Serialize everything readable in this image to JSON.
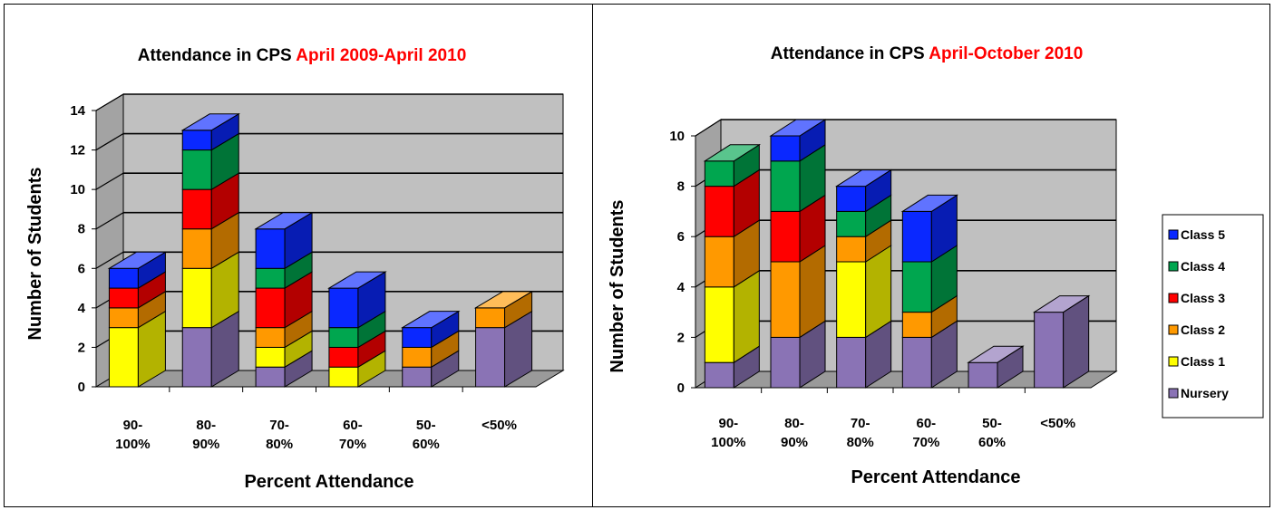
{
  "colors": {
    "Nursery": "#8a73b5",
    "Class 1": "#ffff00",
    "Class 2": "#ff9900",
    "Class 3": "#ff0000",
    "Class 4": "#00a64f",
    "Class 5": "#0a28ff",
    "wall": "#c0c0c0",
    "floor": "#9a9a9a"
  },
  "legend": {
    "items": [
      "Class 5",
      "Class 4",
      "Class 3",
      "Class 2",
      "Class 1",
      "Nursery"
    ]
  },
  "chart_data": [
    {
      "type": "bar",
      "stacked": true,
      "title_prefix": "Attendance in CPS ",
      "title_highlight": "April 2009-April 2010",
      "xlabel": "Percent Attendance",
      "ylabel": "Number of Students",
      "ylim": [
        0,
        14
      ],
      "yticks": [
        0,
        2,
        4,
        6,
        8,
        10,
        12,
        14
      ],
      "categories": [
        [
          "90-",
          "100%"
        ],
        [
          "80-",
          "90%"
        ],
        [
          "70-",
          "80%"
        ],
        [
          "60-",
          "70%"
        ],
        [
          "50-",
          "60%"
        ],
        [
          "<50%"
        ]
      ],
      "series": [
        {
          "name": "Nursery",
          "values": [
            0,
            3,
            1,
            0,
            1,
            3
          ]
        },
        {
          "name": "Class 1",
          "values": [
            3,
            3,
            1,
            1,
            0,
            0
          ]
        },
        {
          "name": "Class 2",
          "values": [
            1,
            2,
            1,
            0,
            1,
            1
          ]
        },
        {
          "name": "Class 3",
          "values": [
            1,
            2,
            2,
            1,
            0,
            0
          ]
        },
        {
          "name": "Class 4",
          "values": [
            0,
            2,
            1,
            1,
            0,
            0
          ]
        },
        {
          "name": "Class 5",
          "values": [
            1,
            1,
            2,
            2,
            1,
            0
          ]
        }
      ]
    },
    {
      "type": "bar",
      "stacked": true,
      "title_prefix": "Attendance in CPS ",
      "title_highlight": "April-October 2010",
      "xlabel": "Percent Attendance",
      "ylabel": "Number of Students",
      "ylim": [
        0,
        10
      ],
      "yticks": [
        0,
        2,
        4,
        6,
        8,
        10
      ],
      "categories": [
        [
          "90-",
          "100%"
        ],
        [
          "80-",
          "90%"
        ],
        [
          "70-",
          "80%"
        ],
        [
          "60-",
          "70%"
        ],
        [
          "50-",
          "60%"
        ],
        [
          "<50%"
        ]
      ],
      "series": [
        {
          "name": "Nursery",
          "values": [
            1,
            2,
            2,
            2,
            1,
            3
          ]
        },
        {
          "name": "Class 1",
          "values": [
            3,
            0,
            3,
            0,
            0,
            0
          ]
        },
        {
          "name": "Class 2",
          "values": [
            2,
            3,
            1,
            1,
            0,
            0
          ]
        },
        {
          "name": "Class 3",
          "values": [
            2,
            2,
            0,
            0,
            0,
            0
          ]
        },
        {
          "name": "Class 4",
          "values": [
            1,
            2,
            1,
            2,
            0,
            0
          ]
        },
        {
          "name": "Class 5",
          "values": [
            0,
            1,
            1,
            2,
            0,
            0
          ]
        }
      ]
    }
  ]
}
